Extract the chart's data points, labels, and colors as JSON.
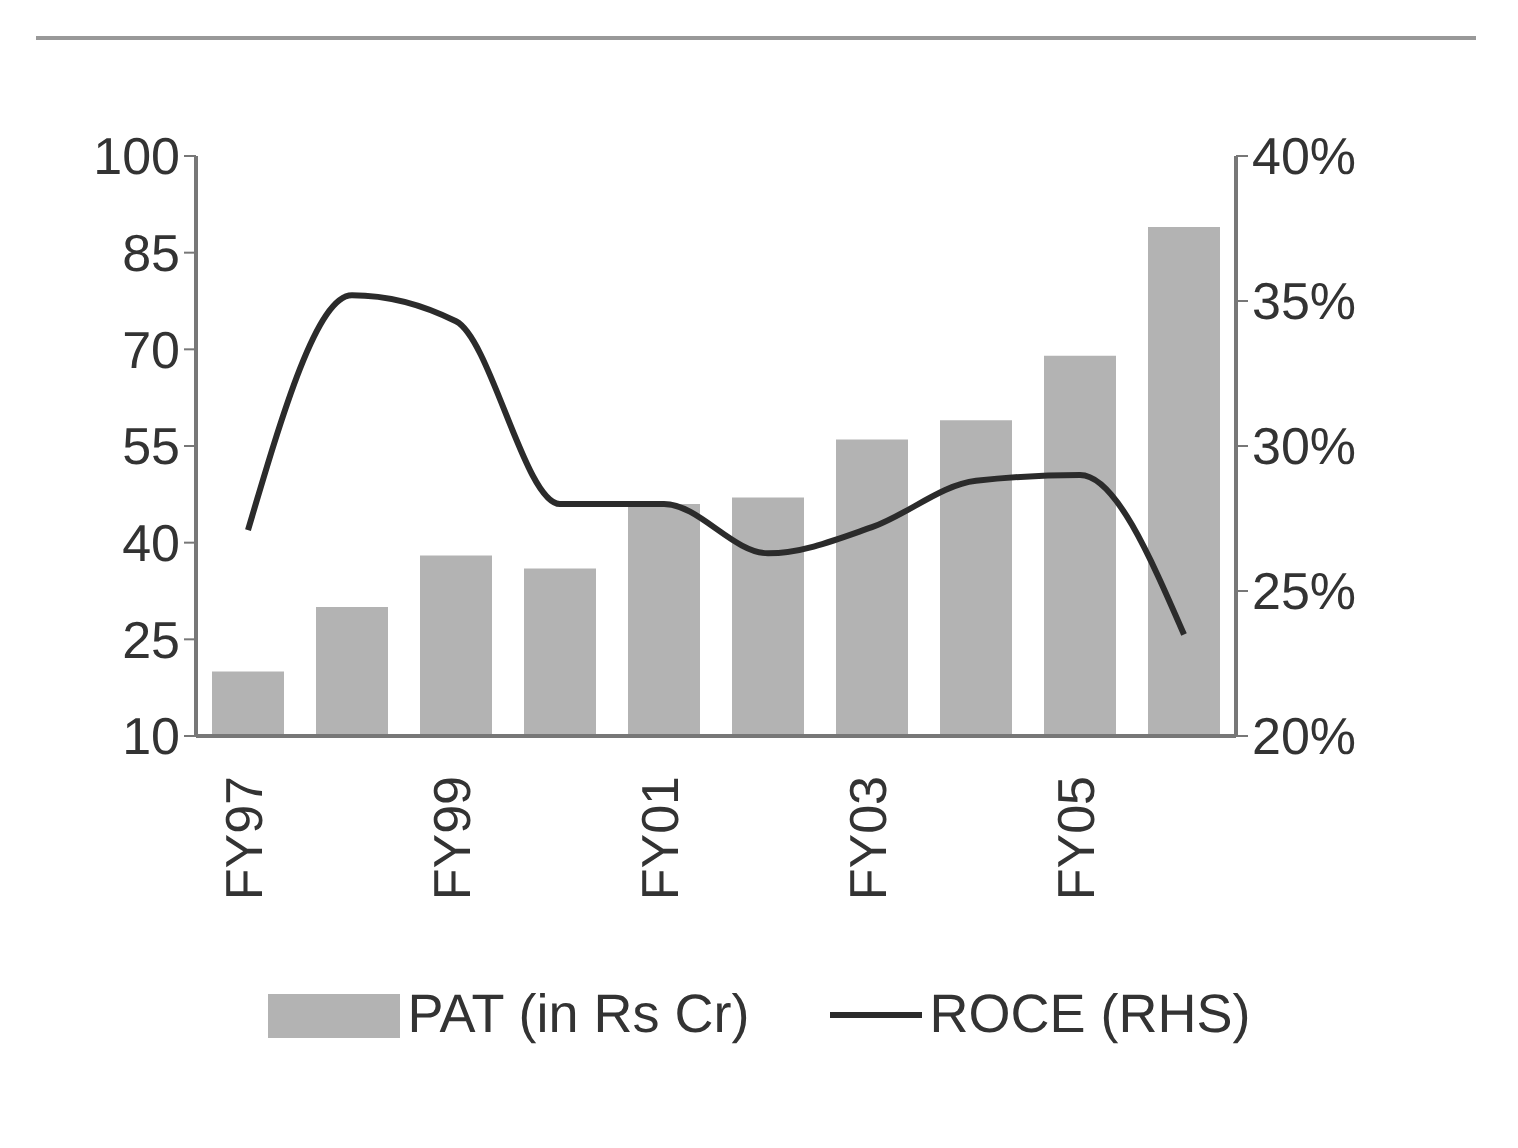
{
  "chart_data": {
    "type": "bar",
    "categories": [
      "FY97",
      null,
      "FY99",
      null,
      "FY01",
      null,
      "FY03",
      null,
      "FY05",
      null
    ],
    "series": [
      {
        "name": "PAT (in Rs Cr)",
        "color": "#b3b3b3",
        "values": [
          20,
          30,
          38,
          36,
          46,
          47,
          56,
          59,
          69,
          89
        ]
      },
      {
        "name": "ROCE (RHS)",
        "type": "line",
        "axis": "y2",
        "color": "#2b2b2b",
        "values": [
          27.1,
          35.2,
          34.3,
          28,
          28,
          26.3,
          27.2,
          28.8,
          29,
          23.5
        ]
      }
    ],
    "ylim": [
      10,
      100
    ],
    "yticks": [
      10,
      25,
      40,
      55,
      70,
      85,
      100
    ],
    "y2lim": [
      20,
      40
    ],
    "y2ticks": [
      {
        "value": 20,
        "label": "20%"
      },
      {
        "value": 25,
        "label": "25%"
      },
      {
        "value": 30,
        "label": "30%"
      },
      {
        "value": 35,
        "label": "35%"
      },
      {
        "value": 40,
        "label": "40%"
      }
    ],
    "grid": false,
    "legend": "bottom",
    "marker": "none",
    "line_style": "solid"
  }
}
